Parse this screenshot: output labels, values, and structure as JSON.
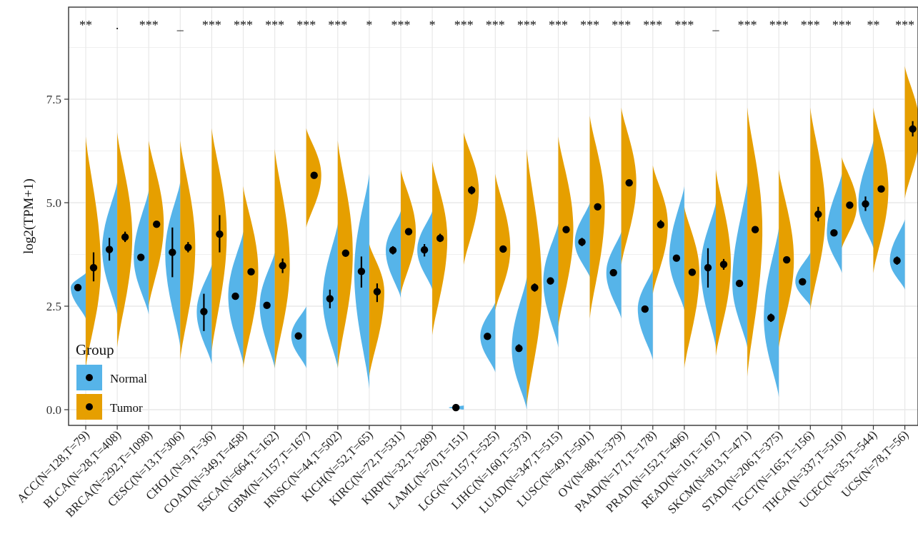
{
  "chart_data": {
    "type": "split-violin",
    "ylabel": "log2(TPM+1)",
    "xlabel": "",
    "ylim": [
      -0.45,
      9.35
    ],
    "yticks": [
      0.0,
      2.5,
      5.0,
      7.5
    ],
    "ytick_labels": [
      "0.0",
      "2.5",
      "5.0",
      "7.5"
    ],
    "grid": true,
    "legend": {
      "title": "Group",
      "placement": "bottom-left",
      "entries": [
        {
          "name": "Normal",
          "color": "#56B4E9"
        },
        {
          "name": "Tumor",
          "color": "#E69F00"
        }
      ]
    },
    "categories": [
      {
        "label": "ACC(N=128,T=79)",
        "sig": "**",
        "normal": {
          "median": 2.95,
          "err": [
            2.88,
            3.02
          ],
          "range": [
            2.2,
            3.3
          ]
        },
        "tumor": {
          "median": 3.43,
          "err": [
            3.1,
            3.8
          ],
          "range": [
            1.0,
            6.6
          ]
        }
      },
      {
        "label": "BLCA(N=28,T=408)",
        "sig": ".",
        "normal": {
          "median": 3.87,
          "err": [
            3.6,
            4.15
          ],
          "range": [
            2.3,
            5.5
          ]
        },
        "tumor": {
          "median": 4.17,
          "err": [
            4.05,
            4.3
          ],
          "range": [
            1.5,
            6.7
          ]
        }
      },
      {
        "label": "BRCA(N=292,T=1098)",
        "sig": "***",
        "normal": {
          "median": 3.68,
          "err": [
            3.62,
            3.74
          ],
          "range": [
            2.3,
            5.3
          ]
        },
        "tumor": {
          "median": 4.48,
          "err": [
            4.42,
            4.54
          ],
          "range": [
            2.5,
            6.5
          ]
        }
      },
      {
        "label": "CESC(N=13,T=306)",
        "sig": "_",
        "normal": {
          "median": 3.8,
          "err": [
            3.2,
            4.4
          ],
          "range": [
            1.5,
            5.5
          ]
        },
        "tumor": {
          "median": 3.92,
          "err": [
            3.8,
            4.05
          ],
          "range": [
            1.2,
            6.5
          ]
        }
      },
      {
        "label": "CHOL(N=9,T=36)",
        "sig": "***",
        "normal": {
          "median": 2.37,
          "err": [
            1.9,
            2.8
          ],
          "range": [
            1.1,
            3.5
          ]
        },
        "tumor": {
          "median": 4.24,
          "err": [
            3.8,
            4.7
          ],
          "range": [
            1.4,
            6.8
          ]
        }
      },
      {
        "label": "COAD(N=349,T=458)",
        "sig": "***",
        "normal": {
          "median": 2.74,
          "err": [
            2.68,
            2.8
          ],
          "range": [
            1.1,
            4.3
          ]
        },
        "tumor": {
          "median": 3.33,
          "err": [
            3.26,
            3.4
          ],
          "range": [
            1.0,
            5.4
          ]
        }
      },
      {
        "label": "ESCA(N=664,T=162)",
        "sig": "***",
        "normal": {
          "median": 2.52,
          "err": [
            2.47,
            2.57
          ],
          "range": [
            1.0,
            3.8
          ]
        },
        "tumor": {
          "median": 3.48,
          "err": [
            3.3,
            3.65
          ],
          "range": [
            1.0,
            6.3
          ]
        }
      },
      {
        "label": "GBM(N=1157,T=167)",
        "sig": "***",
        "normal": {
          "median": 1.78,
          "err": [
            1.74,
            1.82
          ],
          "range": [
            1.0,
            2.5
          ]
        },
        "tumor": {
          "median": 5.66,
          "err": [
            5.58,
            5.74
          ],
          "range": [
            4.4,
            6.8
          ]
        }
      },
      {
        "label": "HNSC(N=44,T=502)",
        "sig": "***",
        "normal": {
          "median": 2.68,
          "err": [
            2.45,
            2.9
          ],
          "range": [
            1.0,
            4.5
          ]
        },
        "tumor": {
          "median": 3.78,
          "err": [
            3.7,
            3.86
          ],
          "range": [
            1.0,
            6.5
          ]
        }
      },
      {
        "label": "KICH(N=52,T=65)",
        "sig": "*",
        "normal": {
          "median": 3.34,
          "err": [
            2.95,
            3.7
          ],
          "range": [
            0.5,
            5.7
          ]
        },
        "tumor": {
          "median": 2.85,
          "err": [
            2.6,
            3.05
          ],
          "range": [
            0.8,
            4.0
          ]
        }
      },
      {
        "label": "KIRC(N=72,T=531)",
        "sig": "***",
        "normal": {
          "median": 3.85,
          "err": [
            3.75,
            3.95
          ],
          "range": [
            2.7,
            4.8
          ]
        },
        "tumor": {
          "median": 4.3,
          "err": [
            4.25,
            4.35
          ],
          "range": [
            2.8,
            5.8
          ]
        }
      },
      {
        "label": "KIRP(N=32,T=289)",
        "sig": "*",
        "normal": {
          "median": 3.86,
          "err": [
            3.7,
            4.0
          ],
          "range": [
            2.9,
            4.8
          ]
        },
        "tumor": {
          "median": 4.14,
          "err": [
            4.05,
            4.25
          ],
          "range": [
            1.8,
            6.0
          ]
        }
      },
      {
        "label": "LAML(N=70,T=151)",
        "sig": "***",
        "normal": {
          "median": 0.05,
          "err": [
            0.03,
            0.07
          ],
          "range": [
            0.0,
            0.1
          ]
        },
        "tumor": {
          "median": 5.3,
          "err": [
            5.2,
            5.4
          ],
          "range": [
            3.5,
            6.7
          ]
        }
      },
      {
        "label": "LGG(N=1157,T=525)",
        "sig": "***",
        "normal": {
          "median": 1.77,
          "err": [
            1.73,
            1.81
          ],
          "range": [
            0.9,
            2.6
          ]
        },
        "tumor": {
          "median": 3.88,
          "err": [
            3.84,
            3.92
          ],
          "range": [
            2.4,
            5.7
          ]
        }
      },
      {
        "label": "LIHC(N=160,T=373)",
        "sig": "***",
        "normal": {
          "median": 1.48,
          "err": [
            1.4,
            1.58
          ],
          "range": [
            0.0,
            3.2
          ]
        },
        "tumor": {
          "median": 2.95,
          "err": [
            2.85,
            3.05
          ],
          "range": [
            0.1,
            6.3
          ]
        }
      },
      {
        "label": "LUAD(N=347,T=515)",
        "sig": "***",
        "normal": {
          "median": 3.11,
          "err": [
            3.06,
            3.16
          ],
          "range": [
            1.5,
            4.5
          ]
        },
        "tumor": {
          "median": 4.35,
          "err": [
            4.3,
            4.4
          ],
          "range": [
            2.0,
            6.6
          ]
        }
      },
      {
        "label": "LUSC(N=49,T=501)",
        "sig": "***",
        "normal": {
          "median": 4.05,
          "err": [
            3.95,
            4.15
          ],
          "range": [
            3.2,
            5.0
          ]
        },
        "tumor": {
          "median": 4.9,
          "err": [
            4.83,
            4.97
          ],
          "range": [
            2.2,
            7.1
          ]
        }
      },
      {
        "label": "OV(N=88,T=379)",
        "sig": "***",
        "normal": {
          "median": 3.31,
          "err": [
            3.25,
            3.37
          ],
          "range": [
            2.2,
            4.3
          ]
        },
        "tumor": {
          "median": 5.48,
          "err": [
            5.42,
            5.54
          ],
          "range": [
            3.5,
            7.3
          ]
        }
      },
      {
        "label": "PAAD(N=171,T=178)",
        "sig": "***",
        "normal": {
          "median": 2.43,
          "err": [
            2.38,
            2.48
          ],
          "range": [
            1.2,
            3.4
          ]
        },
        "tumor": {
          "median": 4.47,
          "err": [
            4.38,
            4.58
          ],
          "range": [
            2.8,
            5.9
          ]
        }
      },
      {
        "label": "PRAD(N=152,T=496)",
        "sig": "***",
        "normal": {
          "median": 3.66,
          "err": [
            3.6,
            3.72
          ],
          "range": [
            2.4,
            5.4
          ]
        },
        "tumor": {
          "median": 3.32,
          "err": [
            3.28,
            3.36
          ],
          "range": [
            1.0,
            4.9
          ]
        }
      },
      {
        "label": "READ(N=10,T=167)",
        "sig": "_",
        "normal": {
          "median": 3.43,
          "err": [
            2.95,
            3.9
          ],
          "range": [
            1.5,
            5.0
          ]
        },
        "tumor": {
          "median": 3.51,
          "err": [
            3.38,
            3.64
          ],
          "range": [
            1.3,
            5.8
          ]
        }
      },
      {
        "label": "SKCM(N=813,T=471)",
        "sig": "***",
        "normal": {
          "median": 3.05,
          "err": [
            3.02,
            3.08
          ],
          "range": [
            1.5,
            5.5
          ]
        },
        "tumor": {
          "median": 4.35,
          "err": [
            4.28,
            4.42
          ],
          "range": [
            0.8,
            7.3
          ]
        }
      },
      {
        "label": "STAD(N=206,T=375)",
        "sig": "***",
        "normal": {
          "median": 2.22,
          "err": [
            2.12,
            2.32
          ],
          "range": [
            0.3,
            4.4
          ]
        },
        "tumor": {
          "median": 3.62,
          "err": [
            3.56,
            3.68
          ],
          "range": [
            1.5,
            5.8
          ]
        }
      },
      {
        "label": "TGCT(N=165,T=156)",
        "sig": "***",
        "normal": {
          "median": 3.09,
          "err": [
            3.05,
            3.13
          ],
          "range": [
            2.5,
            3.8
          ]
        },
        "tumor": {
          "median": 4.72,
          "err": [
            4.55,
            4.9
          ],
          "range": [
            2.4,
            7.3
          ]
        }
      },
      {
        "label": "THCA(N=337,T=510)",
        "sig": "***",
        "normal": {
          "median": 4.27,
          "err": [
            4.23,
            4.31
          ],
          "range": [
            3.3,
            5.7
          ]
        },
        "tumor": {
          "median": 4.94,
          "err": [
            4.9,
            4.98
          ],
          "range": [
            3.9,
            6.1
          ]
        }
      },
      {
        "label": "UCEC(N=35,T=544)",
        "sig": "**",
        "normal": {
          "median": 4.97,
          "err": [
            4.8,
            5.15
          ],
          "range": [
            3.9,
            6.5
          ]
        },
        "tumor": {
          "median": 5.33,
          "err": [
            5.27,
            5.39
          ],
          "range": [
            3.3,
            7.3
          ]
        }
      },
      {
        "label": "UCS(N=78,T=56)",
        "sig": "***",
        "normal": {
          "median": 3.6,
          "err": [
            3.5,
            3.7
          ],
          "range": [
            2.9,
            4.6
          ]
        },
        "tumor": {
          "median": 6.78,
          "err": [
            6.6,
            6.97
          ],
          "range": [
            5.1,
            8.3
          ]
        }
      }
    ]
  }
}
